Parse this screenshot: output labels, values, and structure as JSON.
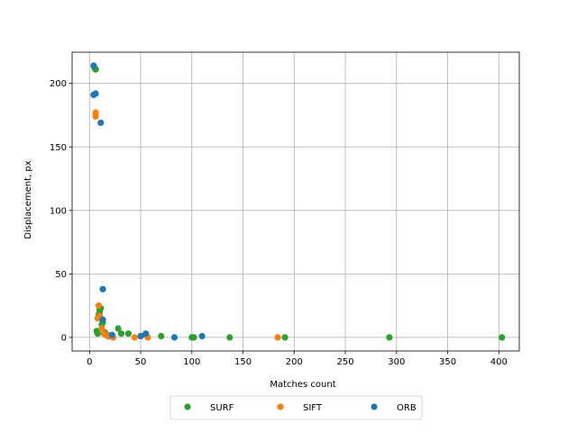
{
  "chart_data": {
    "type": "scatter",
    "title": "",
    "xlabel": "Matches count",
    "ylabel": "Displacement, px",
    "xlim": [
      -17,
      420
    ],
    "ylim": [
      -10.7,
      224.6
    ],
    "xticks": [
      0,
      50,
      100,
      150,
      200,
      250,
      300,
      350,
      400
    ],
    "yticks": [
      0,
      50,
      100,
      150,
      200
    ],
    "grid": true,
    "legend_position": "bottom-center",
    "series": [
      {
        "name": "SURF",
        "color": "#2ca02c",
        "points": [
          [
            5,
            212
          ],
          [
            6,
            211
          ],
          [
            7,
            5
          ],
          [
            8,
            3
          ],
          [
            9,
            18
          ],
          [
            10,
            20
          ],
          [
            10,
            22
          ],
          [
            11,
            23
          ],
          [
            12,
            10
          ],
          [
            13,
            12
          ],
          [
            15,
            4
          ],
          [
            17,
            2
          ],
          [
            19,
            1
          ],
          [
            22,
            1
          ],
          [
            28,
            7
          ],
          [
            31,
            3
          ],
          [
            38,
            3
          ],
          [
            55,
            2
          ],
          [
            70,
            1
          ],
          [
            100,
            0
          ],
          [
            102,
            0
          ],
          [
            137,
            0
          ],
          [
            191,
            0
          ],
          [
            293,
            0
          ],
          [
            403,
            0
          ]
        ]
      },
      {
        "name": "SIFT",
        "color": "#ff7f0e",
        "points": [
          [
            6,
            177
          ],
          [
            6,
            174
          ],
          [
            8,
            15
          ],
          [
            9,
            25
          ],
          [
            10,
            17
          ],
          [
            12,
            7
          ],
          [
            14,
            3
          ],
          [
            16,
            2
          ],
          [
            18,
            1
          ],
          [
            23,
            0
          ],
          [
            44,
            0
          ],
          [
            50,
            1
          ],
          [
            57,
            0
          ],
          [
            184,
            0
          ]
        ]
      },
      {
        "name": "ORB",
        "color": "#1f77b4",
        "points": [
          [
            4,
            214
          ],
          [
            4,
            191
          ],
          [
            6,
            192
          ],
          [
            11,
            169
          ],
          [
            13,
            38
          ],
          [
            13,
            14
          ],
          [
            22,
            2
          ],
          [
            50,
            1
          ],
          [
            55,
            3
          ],
          [
            83,
            0
          ],
          [
            110,
            1
          ]
        ]
      }
    ]
  }
}
